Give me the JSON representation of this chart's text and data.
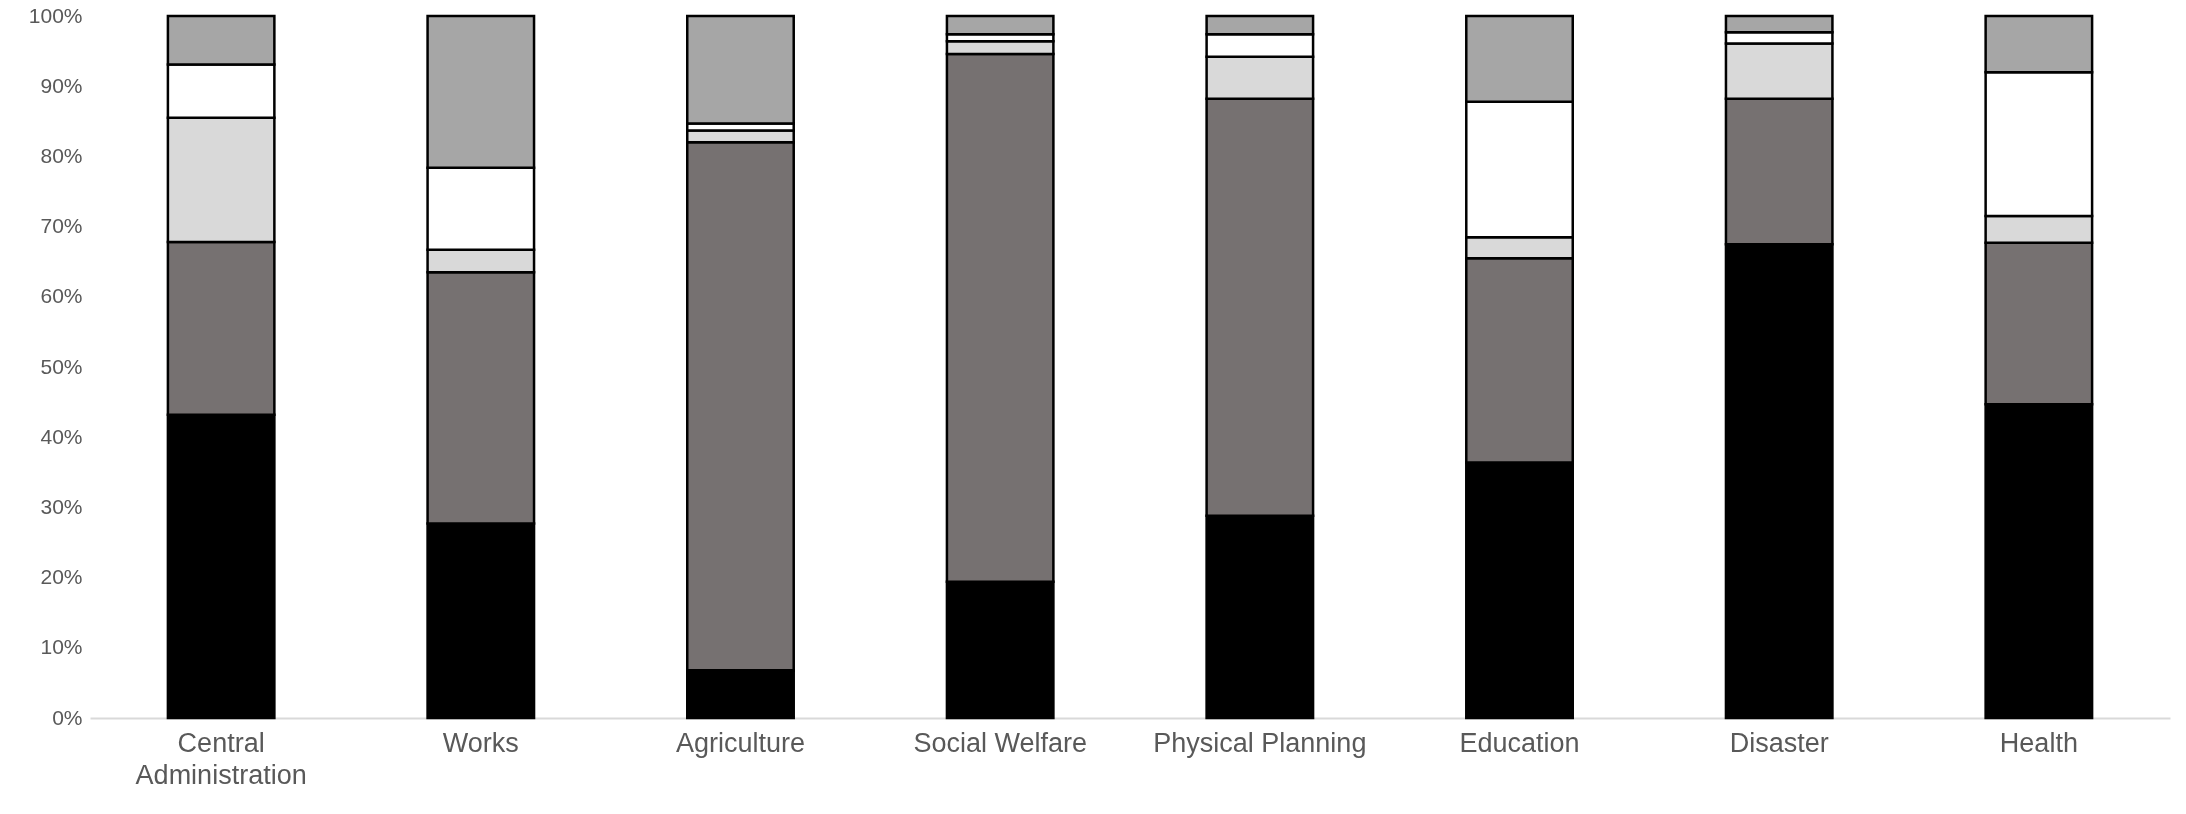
{
  "chart_data": {
    "type": "bar",
    "stacked": true,
    "categories": [
      "Central Administration",
      "Works",
      "Agriculture",
      "Social Welfare",
      "Physical Planning",
      "Education",
      "Disaster",
      "Health"
    ],
    "series": [
      {
        "color": "#000000",
        "values": [
          43.2,
          27.7,
          6.8,
          19.4,
          28.8,
          36.4,
          67.5,
          44.7
        ]
      },
      {
        "color": "#767171",
        "values": [
          24.6,
          35.8,
          75.2,
          75.2,
          59.4,
          29.1,
          20.7,
          23.0
        ]
      },
      {
        "color": "#d9d9d9",
        "values": [
          17.7,
          3.2,
          1.7,
          1.8,
          6.0,
          3.0,
          7.9,
          3.8
        ]
      },
      {
        "color": "#ffffff",
        "values": [
          7.6,
          11.7,
          1.0,
          1.0,
          3.2,
          19.3,
          1.6,
          20.5
        ]
      },
      {
        "color": "#a6a6a6",
        "values": [
          6.9,
          21.6,
          15.3,
          2.6,
          2.6,
          12.2,
          2.3,
          8.0
        ]
      }
    ],
    "ylim": [
      0,
      100
    ],
    "yticks": [
      {
        "value": 0,
        "label": "0%"
      },
      {
        "value": 10,
        "label": "10%"
      },
      {
        "value": 20,
        "label": "20%"
      },
      {
        "value": 30,
        "label": "30%"
      },
      {
        "value": 40,
        "label": "40%"
      },
      {
        "value": 50,
        "label": "50%"
      },
      {
        "value": 60,
        "label": "60%"
      },
      {
        "value": 70,
        "label": "70%"
      },
      {
        "value": 80,
        "label": "80%"
      },
      {
        "value": 90,
        "label": "90%"
      },
      {
        "value": 100,
        "label": "100%"
      }
    ],
    "grid": false
  }
}
